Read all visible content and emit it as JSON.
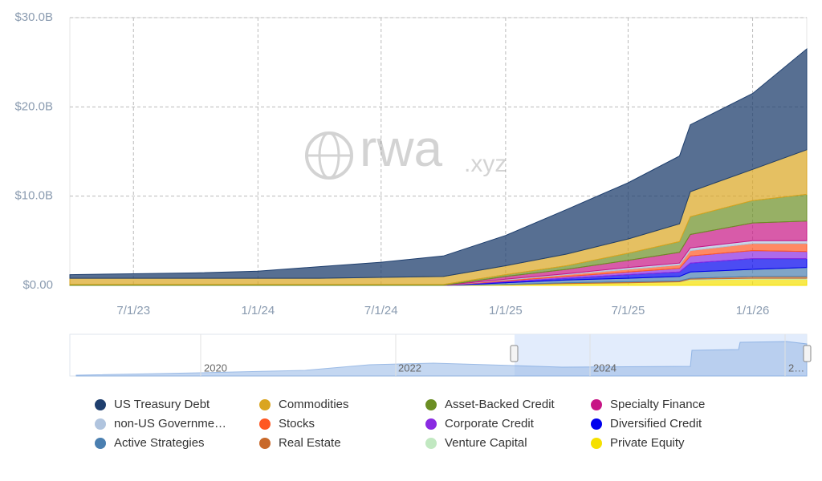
{
  "chart_data": {
    "type": "stacked-area",
    "watermark": {
      "main": "rwa",
      "suffix": ".xyz"
    },
    "x": [
      "2023-03-29",
      "2023-07-01",
      "2023-10-01",
      "2024-01-01",
      "2024-04-01",
      "2024-07-01",
      "2024-10-01",
      "2025-01-01",
      "2025-04-01",
      "2025-07-01",
      "2025-09-15",
      "2025-10-01",
      "2026-01-01",
      "2026-03-22"
    ],
    "xlim": [
      "2023-03-29",
      "2026-03-22"
    ],
    "xticks": [
      {
        "value": "2023-07-01",
        "label": "7/1/23"
      },
      {
        "value": "2024-01-01",
        "label": "1/1/24"
      },
      {
        "value": "2024-07-01",
        "label": "7/1/24"
      },
      {
        "value": "2025-01-01",
        "label": "1/1/25"
      },
      {
        "value": "2025-07-01",
        "label": "7/1/25"
      },
      {
        "value": "2026-01-01",
        "label": "1/1/26"
      }
    ],
    "ylim": [
      0,
      30
    ],
    "yticks": [
      {
        "value": 0,
        "label": "$0.00"
      },
      {
        "value": 10,
        "label": "$10.0B"
      },
      {
        "value": 20,
        "label": "$20.0B"
      },
      {
        "value": 30,
        "label": "$30.0B"
      }
    ],
    "grid": true,
    "series": [
      {
        "name": "US Treasury Debt",
        "color": "#1f3f6e",
        "values": [
          0.4,
          0.5,
          0.6,
          0.8,
          1.3,
          1.7,
          2.3,
          3.4,
          5.0,
          6.3,
          7.6,
          7.5,
          8.5,
          11.3
        ]
      },
      {
        "name": "Commodities",
        "color": "#daa520",
        "values": [
          0.7,
          0.7,
          0.7,
          0.7,
          0.7,
          0.8,
          0.9,
          1.0,
          1.3,
          1.6,
          2.0,
          2.8,
          3.5,
          5.0
        ]
      },
      {
        "name": "Asset-Backed Credit",
        "color": "#6b8e23",
        "values": [
          0.1,
          0.1,
          0.1,
          0.1,
          0.1,
          0.1,
          0.1,
          0.2,
          0.4,
          0.8,
          1.2,
          2.0,
          2.5,
          3.0
        ]
      },
      {
        "name": "Specialty Finance",
        "color": "#c71585",
        "values": [
          0,
          0,
          0,
          0,
          0,
          0,
          0,
          0.3,
          0.5,
          0.8,
          1.2,
          1.5,
          2.0,
          2.2
        ]
      },
      {
        "name": "non-US Governme…",
        "color": "#b0c4de",
        "values": [
          0,
          0,
          0,
          0,
          0,
          0,
          0,
          0.1,
          0.1,
          0.2,
          0.2,
          0.3,
          0.3,
          0.3
        ]
      },
      {
        "name": "Stocks",
        "color": "#ff5722",
        "values": [
          0,
          0,
          0,
          0,
          0,
          0,
          0,
          0.1,
          0.2,
          0.3,
          0.4,
          0.6,
          0.8,
          0.9
        ]
      },
      {
        "name": "Corporate Credit",
        "color": "#8a2be2",
        "values": [
          0,
          0,
          0,
          0,
          0,
          0,
          0,
          0.1,
          0.2,
          0.3,
          0.4,
          0.8,
          0.9,
          0.8
        ]
      },
      {
        "name": "Diversified Credit",
        "color": "#0000ee",
        "values": [
          0,
          0,
          0,
          0,
          0,
          0,
          0,
          0.1,
          0.2,
          0.4,
          0.5,
          1.0,
          1.2,
          1.0
        ]
      },
      {
        "name": "Active Strategies",
        "color": "#4a7fb0",
        "values": [
          0,
          0,
          0,
          0,
          0,
          0,
          0,
          0.2,
          0.3,
          0.4,
          0.5,
          0.7,
          0.8,
          1.0
        ]
      },
      {
        "name": "Real Estate",
        "color": "#c8692a",
        "values": [
          0,
          0,
          0,
          0,
          0,
          0,
          0,
          0,
          0.1,
          0.1,
          0.1,
          0.1,
          0.2,
          0.2
        ]
      },
      {
        "name": "Venture Capital",
        "color": "#c1e8c1",
        "values": [
          0,
          0,
          0,
          0,
          0,
          0,
          0,
          0,
          0,
          0,
          0,
          0.1,
          0.1,
          0.1
        ]
      },
      {
        "name": "Private Equity",
        "color": "#f5e000",
        "values": [
          0,
          0,
          0,
          0,
          0,
          0,
          0,
          0.1,
          0.2,
          0.3,
          0.4,
          0.6,
          0.7,
          0.7
        ]
      }
    ],
    "navigator": {
      "labels": [
        "2020",
        "2022",
        "2024",
        "2…"
      ]
    }
  }
}
